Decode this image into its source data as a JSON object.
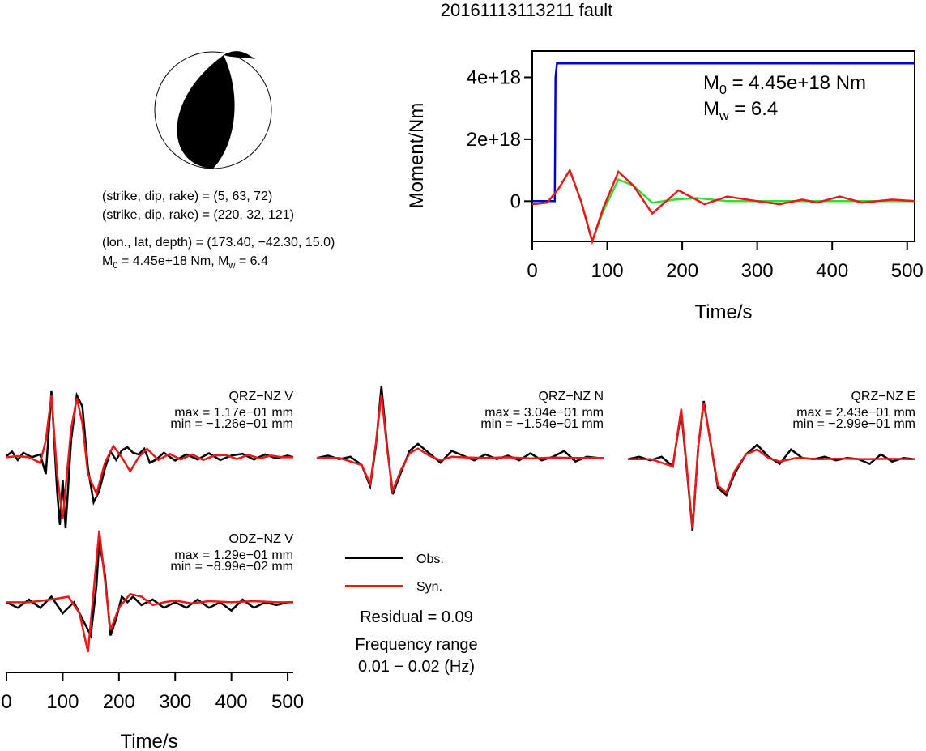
{
  "title": "20161113113211 fault",
  "colors": {
    "background": "#ffffff",
    "obs": "#000000",
    "syn": "#e41a1c",
    "moment_cumulative": "#0000cc",
    "moment_rate": "#33dd33",
    "moment_rate_syn": "#e41a1c"
  },
  "mechanism": {
    "line1": "(strike, dip, rake) = (5, 63, 72)",
    "line2": "(strike, dip, rake) = (220, 32, 121)",
    "line3": "(lon., lat, depth) = (173.40, −42.30, 15.0)",
    "m0_prefix": "M",
    "m0_sub": "0",
    "m0_value": " = 4.45e+18 Nm, M",
    "mw_sub": "w",
    "mw_value": " = 6.4"
  },
  "moment_panel": {
    "ylabel": "Moment/Nm",
    "xlabel": "Time/s",
    "yticks": [
      "4e+18",
      "2e+18",
      "0"
    ],
    "xticks": [
      "0",
      "100",
      "200",
      "300",
      "400",
      "500"
    ],
    "m0_label_main": "M",
    "m0_label_sub": "0",
    "m0_label_value": " = 4.45e+18 Nm",
    "mw_label_main": "M",
    "mw_label_sub": "w",
    "mw_label_value": " = 6.4"
  },
  "stations": [
    {
      "name": "QRZ−NZ V",
      "max": "max = 1.17e−01 mm",
      "min": "min = −1.26e−01 mm"
    },
    {
      "name": "QRZ−NZ N",
      "max": "max = 3.04e−01 mm",
      "min": "min = −1.54e−01 mm"
    },
    {
      "name": "QRZ−NZ E",
      "max": "max = 2.43e−01 mm",
      "min": "min = −2.99e−01 mm"
    },
    {
      "name": "ODZ−NZ V",
      "max": "max = 1.29e−01 mm",
      "min": "min = −8.99e−02 mm"
    }
  ],
  "legend": {
    "obs": "Obs.",
    "syn": "Syn.",
    "residual": "Residual = 0.09",
    "freq_title": "Frequency range",
    "freq_value": "0.01 − 0.02 (Hz)"
  },
  "waveform_axis": {
    "xlabel": "Time/s",
    "xticks": [
      "0",
      "100",
      "200",
      "300",
      "400",
      "500"
    ]
  },
  "chart_data": [
    {
      "type": "line",
      "xlabel": "Time/s",
      "ylabel": "Moment/Nm",
      "xlim": [
        0,
        510
      ],
      "ylim": [
        -1.3e+18,
        4.85e+18
      ],
      "series": [
        {
          "x": [
            0,
            30,
            31,
            33,
            510
          ],
          "values": [
            0,
            0,
            4e+18,
            4.45e+18,
            4.45e+18
          ]
        },
        {
          "x": [
            0,
            20,
            35,
            50,
            65,
            80,
            95,
            115,
            135,
            160,
            190,
            220,
            260,
            510
          ],
          "values": [
            -1e+17,
            -5e+16,
            4e+17,
            1e+18,
            0.0,
            -1.3e+18,
            -3e+17,
            7e+17,
            5e+17,
            -5e+16,
            5e+16,
            1e+17,
            0.0,
            0.0
          ]
        },
        {
          "x": [
            0,
            20,
            35,
            50,
            65,
            80,
            95,
            115,
            135,
            160,
            195,
            230,
            260,
            300,
            330,
            360,
            380,
            410,
            440,
            480,
            510
          ],
          "values": [
            -1e+17,
            -5e+16,
            4e+17,
            1e+18,
            0.0,
            -1.3e+18,
            -2e+17,
            9.5e+17,
            5e+17,
            -4e+17,
            3.5e+17,
            -1e+17,
            1.5e+17,
            0.0,
            -1e+17,
            5e+16,
            -5e+16,
            1.5e+17,
            -5e+16,
            5e+16,
            0.0
          ]
        }
      ]
    },
    {
      "type": "line",
      "name": "QRZ-NZ V",
      "xlim": [
        0,
        510
      ],
      "ylim": [
        -1.26,
        1.17
      ],
      "series": [
        {
          "x": [
            0,
            10,
            20,
            30,
            45,
            60,
            70,
            80,
            90,
            95,
            100,
            105,
            115,
            125,
            135,
            145,
            155,
            165,
            175,
            185,
            195,
            205,
            215,
            225,
            235,
            245,
            255,
            265,
            280,
            300,
            320,
            340,
            360,
            380,
            400,
            420,
            440,
            460,
            480,
            500,
            510
          ],
          "values": [
            0.02,
            0.1,
            -0.05,
            0.08,
            0.0,
            0.05,
            -0.3,
            1.17,
            -0.6,
            -1.2,
            -0.4,
            -1.26,
            0.3,
            1.1,
            0.9,
            -0.2,
            -0.8,
            -0.6,
            -0.2,
            0.1,
            -0.05,
            0.12,
            0.18,
            0.08,
            0.05,
            0.15,
            -0.1,
            -0.05,
            0.08,
            -0.06,
            0.05,
            -0.04,
            0.07,
            -0.05,
            0.03,
            0.06,
            -0.04,
            0.05,
            -0.02,
            0.03,
            0.0
          ]
        },
        {
          "x": [
            0,
            20,
            40,
            60,
            70,
            80,
            90,
            100,
            115,
            125,
            135,
            145,
            160,
            175,
            190,
            205,
            220,
            235,
            250,
            270,
            290,
            310,
            330,
            350,
            370,
            390,
            410,
            430,
            450,
            470,
            490,
            510
          ],
          "values": [
            0.0,
            0.02,
            0.0,
            -0.1,
            0.3,
            1.1,
            -0.3,
            -1.1,
            0.5,
            1.05,
            0.6,
            -0.3,
            -0.65,
            -0.1,
            0.2,
            0.0,
            -0.25,
            0.0,
            0.15,
            -0.05,
            0.06,
            -0.04,
            0.05,
            -0.05,
            0.03,
            0.04,
            -0.03,
            0.04,
            -0.02,
            0.03,
            0.0,
            0.0
          ]
        }
      ]
    },
    {
      "type": "line",
      "name": "QRZ-NZ N",
      "xlim": [
        0,
        510
      ],
      "ylim": [
        -1.54,
        3.04
      ],
      "series": [
        {
          "x": [
            0,
            20,
            40,
            60,
            80,
            95,
            105,
            115,
            125,
            135,
            150,
            165,
            180,
            200,
            220,
            240,
            260,
            280,
            300,
            320,
            340,
            360,
            380,
            400,
            420,
            440,
            460,
            480,
            500,
            510
          ],
          "values": [
            0.0,
            0.1,
            -0.05,
            0.05,
            -0.3,
            -1.2,
            0.5,
            3.04,
            0.5,
            -1.54,
            -0.6,
            0.3,
            0.6,
            0.2,
            -0.2,
            0.3,
            0.1,
            -0.1,
            0.15,
            -0.05,
            0.1,
            -0.1,
            0.2,
            -0.1,
            0.05,
            0.3,
            -0.15,
            0.05,
            0.0,
            0.0
          ]
        },
        {
          "x": [
            0,
            40,
            80,
            95,
            105,
            115,
            125,
            135,
            150,
            165,
            180,
            200,
            220,
            240,
            270,
            300,
            340,
            380,
            420,
            460,
            500,
            510
          ],
          "values": [
            0.0,
            0.0,
            -0.3,
            -1.1,
            0.6,
            2.7,
            0.4,
            -1.4,
            -0.5,
            0.2,
            0.4,
            0.1,
            -0.1,
            0.05,
            0.02,
            0.0,
            0.03,
            -0.02,
            0.02,
            0.0,
            0.0,
            0.0
          ]
        }
      ]
    },
    {
      "type": "line",
      "name": "QRZ-NZ E",
      "xlim": [
        0,
        510
      ],
      "ylim": [
        -2.99,
        2.43
      ],
      "series": [
        {
          "x": [
            0,
            20,
            40,
            60,
            80,
            95,
            105,
            115,
            125,
            135,
            145,
            160,
            175,
            190,
            210,
            230,
            250,
            270,
            290,
            310,
            330,
            350,
            370,
            390,
            410,
            430,
            450,
            470,
            490,
            510
          ],
          "values": [
            0.0,
            0.1,
            -0.05,
            0.1,
            -0.3,
            2.0,
            -0.5,
            -2.99,
            0.5,
            2.43,
            1.0,
            -1.2,
            -1.5,
            -0.6,
            0.2,
            0.6,
            0.1,
            -0.2,
            0.4,
            0.05,
            0.0,
            0.1,
            -0.05,
            0.05,
            0.0,
            -0.2,
            0.2,
            -0.1,
            0.05,
            0.0
          ]
        },
        {
          "x": [
            0,
            40,
            80,
            95,
            105,
            115,
            125,
            135,
            145,
            160,
            175,
            190,
            210,
            230,
            250,
            270,
            300,
            340,
            380,
            420,
            460,
            510
          ],
          "values": [
            0.0,
            0.0,
            -0.3,
            2.1,
            -0.4,
            -2.9,
            0.5,
            2.35,
            1.0,
            -1.1,
            -1.4,
            -0.5,
            0.2,
            0.4,
            0.05,
            -0.1,
            0.05,
            0.0,
            0.02,
            0.0,
            0.01,
            0.0
          ]
        }
      ]
    },
    {
      "type": "line",
      "name": "ODZ-NZ V",
      "xlabel": "Time/s",
      "xlim": [
        0,
        510
      ],
      "ylim": [
        -0.899,
        1.29
      ],
      "series": [
        {
          "x": [
            0,
            20,
            40,
            60,
            80,
            100,
            120,
            140,
            150,
            160,
            165,
            175,
            185,
            195,
            205,
            215,
            225,
            240,
            260,
            280,
            300,
            320,
            340,
            360,
            380,
            400,
            420,
            440,
            460,
            480,
            500,
            510
          ],
          "values": [
            0.0,
            -0.1,
            0.05,
            -0.1,
            0.1,
            -0.2,
            0.0,
            -0.4,
            -0.6,
            0.3,
            1.1,
            0.5,
            -0.6,
            -0.3,
            0.1,
            0.0,
            0.1,
            -0.05,
            0.05,
            -0.1,
            0.0,
            -0.1,
            0.05,
            -0.1,
            0.0,
            -0.15,
            0.05,
            -0.1,
            0.0,
            -0.05,
            0.0,
            0.0
          ]
        },
        {
          "x": [
            0,
            40,
            80,
            110,
            130,
            145,
            155,
            165,
            175,
            185,
            200,
            220,
            240,
            260,
            280,
            300,
            330,
            360,
            400,
            440,
            480,
            510
          ],
          "values": [
            0.0,
            0.0,
            0.05,
            0.1,
            -0.2,
            -0.899,
            0.2,
            1.29,
            0.4,
            -0.5,
            -0.1,
            0.15,
            0.1,
            -0.05,
            0.0,
            0.03,
            -0.02,
            0.02,
            0.0,
            0.02,
            0.0,
            0.0
          ]
        }
      ]
    }
  ]
}
